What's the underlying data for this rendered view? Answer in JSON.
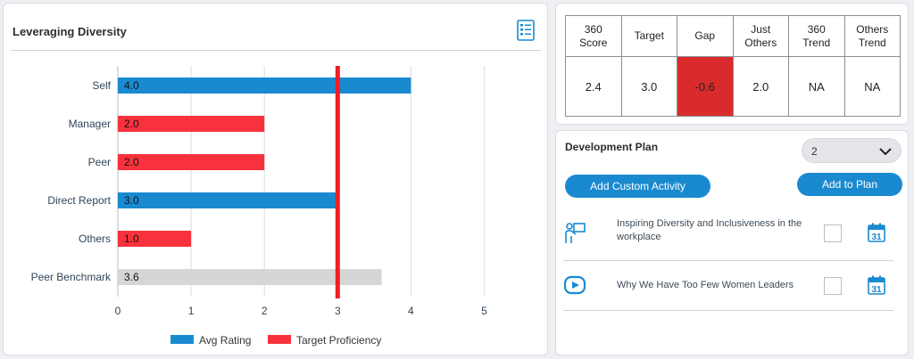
{
  "chart_panel": {
    "title": "Leveraging Diversity",
    "icon": "report-list-icon"
  },
  "chart_data": {
    "type": "bar",
    "orientation": "horizontal",
    "categories": [
      "Self",
      "Manager",
      "Peer",
      "Direct Report",
      "Others",
      "Peer Benchmark"
    ],
    "values": [
      4.0,
      2.0,
      2.0,
      3.0,
      1.0,
      3.6
    ],
    "value_labels": [
      "4.0",
      "2.0",
      "2.0",
      "3.0",
      "1.0",
      "3.6"
    ],
    "bar_colors": [
      "#1a8ad0",
      "#f8323c",
      "#f8323c",
      "#1a8ad0",
      "#f8323c",
      "#d6d6d6"
    ],
    "xlim": [
      0,
      5
    ],
    "x_ticks": [
      "0",
      "1",
      "2",
      "3",
      "4",
      "5"
    ],
    "target_line": 3.0,
    "target_color": "#f01e24",
    "grid": "vertical",
    "legend": [
      {
        "label": "Avg Rating",
        "color": "#1a8ad0"
      },
      {
        "label": "Target Proficiency",
        "color": "#f8323c"
      }
    ],
    "legend_position": "bottom"
  },
  "scores": {
    "headers": [
      "360\nScore",
      "Target",
      "Gap",
      "Just\nOthers",
      "360\nTrend",
      "Others\nTrend"
    ],
    "values": [
      "2.4",
      "3.0",
      "-0.6",
      "2.0",
      "NA",
      "NA"
    ],
    "gap_color": "#d92b2b"
  },
  "plan": {
    "title": "Development Plan",
    "selected": "2",
    "add_custom_label": "Add Custom Activity",
    "add_plan_label": "Add to Plan",
    "activities": [
      {
        "title": "Inspiring Diversity and Inclusiveness in the workplace",
        "icon": "presenter-icon",
        "checked": false
      },
      {
        "title": "Why We Have Too Few Women Leaders",
        "icon": "video-play-icon",
        "checked": false
      }
    ],
    "calendar_day": "31"
  }
}
